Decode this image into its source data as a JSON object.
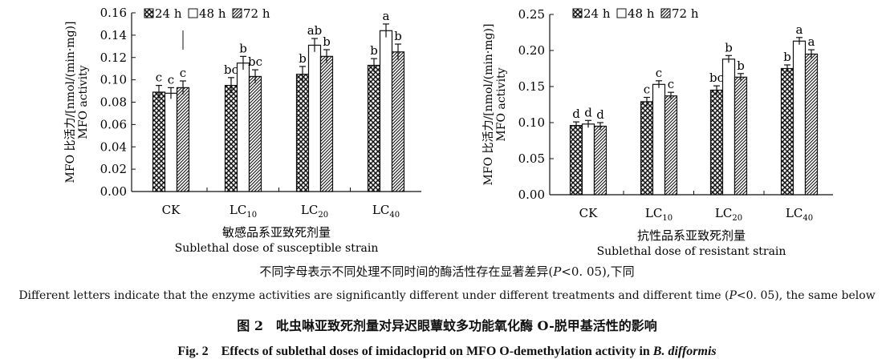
{
  "chart_data": [
    {
      "type": "bar",
      "ylabel_cn": "MFO 比活力/[nmol/(min·mg)]",
      "ylabel_en": "MFO activity",
      "xlabel_cn": "敏感品系亚致死剂量",
      "xlabel_en": "Sublethal dose of susceptible strain",
      "ylim": [
        0,
        0.16
      ],
      "yticks": [
        "0.00",
        "0.02",
        "0.04",
        "0.06",
        "0.08",
        "0.10",
        "0.12",
        "0.14",
        "0.16"
      ],
      "categories": [
        {
          "main": "CK",
          "sub": ""
        },
        {
          "main": "LC",
          "sub": "10"
        },
        {
          "main": "LC",
          "sub": "20"
        },
        {
          "main": "LC",
          "sub": "40"
        }
      ],
      "series": [
        {
          "name": "24 h",
          "pattern": "cross",
          "values": [
            0.089,
            0.095,
            0.105,
            0.113
          ],
          "errors": [
            0.006,
            0.007,
            0.007,
            0.006
          ],
          "letters": [
            "c",
            "bc",
            "b",
            "b"
          ]
        },
        {
          "name": "48 h",
          "pattern": "white",
          "values": [
            0.088,
            0.115,
            0.131,
            0.144
          ],
          "errors": [
            0.005,
            0.006,
            0.006,
            0.006
          ],
          "letters": [
            "c",
            "b",
            "ab",
            "a"
          ]
        },
        {
          "name": "72 h",
          "pattern": "diag",
          "values": [
            0.093,
            0.103,
            0.121,
            0.125
          ],
          "errors": [
            0.006,
            0.006,
            0.006,
            0.007
          ],
          "letters": [
            "c",
            "bc",
            "b",
            "b"
          ]
        }
      ]
    },
    {
      "type": "bar",
      "ylabel_cn": "MFO 比活力/[nmol/(min·mg)]",
      "ylabel_en": "MFO activity",
      "xlabel_cn": "抗性品系亚致死剂量",
      "xlabel_en": "Sublethal dose of resistant strain",
      "ylim": [
        0,
        0.25
      ],
      "yticks": [
        "0.00",
        "0.05",
        "0.10",
        "0.15",
        "0.20",
        "0.25"
      ],
      "categories": [
        {
          "main": "CK",
          "sub": ""
        },
        {
          "main": "LC",
          "sub": "10"
        },
        {
          "main": "LC",
          "sub": "20"
        },
        {
          "main": "LC",
          "sub": "40"
        }
      ],
      "series": [
        {
          "name": "24 h",
          "pattern": "cross",
          "values": [
            0.096,
            0.129,
            0.145,
            0.175
          ],
          "errors": [
            0.005,
            0.006,
            0.006,
            0.005
          ],
          "letters": [
            "d",
            "c",
            "bc",
            "b"
          ]
        },
        {
          "name": "48 h",
          "pattern": "white",
          "values": [
            0.098,
            0.153,
            0.188,
            0.213
          ],
          "errors": [
            0.005,
            0.005,
            0.005,
            0.005
          ],
          "letters": [
            "d",
            "c",
            "b",
            "a"
          ]
        },
        {
          "name": "72 h",
          "pattern": "diag",
          "values": [
            0.095,
            0.137,
            0.163,
            0.195
          ],
          "errors": [
            0.005,
            0.005,
            0.005,
            0.006
          ],
          "letters": [
            "d",
            "c",
            "b",
            "a"
          ]
        }
      ]
    }
  ],
  "caption": {
    "note_cn_before": "不同字母表示不同处理不同时间的酶活性存在显著差异(",
    "note_cn_p": "P",
    "note_cn_after": "<0. 05),下同",
    "note_en_before": "Different letters indicate that the enzyme activities are significantly different under different treatments and different time (",
    "note_en_p": "P",
    "note_en_after": "<0. 05), the same below",
    "title_cn": "图 2　吡虫啉亚致死剂量对异迟眼蕈蚊多功能氧化酶 O-脱甲基活性的影响",
    "title_en_before": "Fig. 2　Effects of sublethal doses of imidacloprid on MFO O-demethylation activity in ",
    "title_en_species": "B.  difformis"
  }
}
